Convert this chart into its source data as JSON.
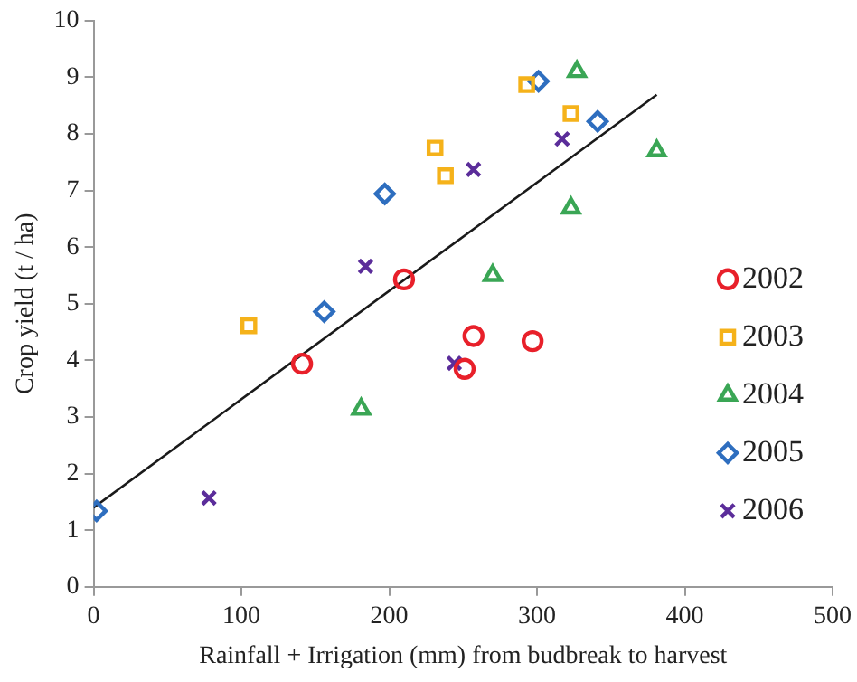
{
  "chart_data": {
    "type": "scatter",
    "xlabel": "Rainfall + Irrigation (mm) from budbreak to harvest",
    "ylabel": "Crop yield (t / ha)",
    "xlim": [
      0,
      500
    ],
    "xticks": [
      0,
      100,
      200,
      300,
      400,
      500
    ],
    "ylim": [
      0,
      10
    ],
    "yticks": [
      0,
      1,
      2,
      3,
      4,
      5,
      6,
      7,
      8,
      9,
      10
    ],
    "grid": false,
    "legend": "bottom right",
    "series": [
      {
        "name": "2002",
        "color": "#e8202a",
        "marker": "circle",
        "x": [
          141,
          210,
          257,
          251,
          297
        ],
        "values": [
          3.94,
          5.43,
          4.43,
          3.85,
          4.34
        ]
      },
      {
        "name": "2003",
        "color": "#f5b21a",
        "marker": "square",
        "x": [
          105,
          231,
          238,
          293,
          323
        ],
        "values": [
          4.61,
          7.75,
          7.26,
          8.87,
          8.36
        ]
      },
      {
        "name": "2004",
        "color": "#3aa655",
        "marker": "triangle",
        "x": [
          181,
          270,
          323,
          327,
          381
        ],
        "values": [
          3.14,
          5.5,
          6.69,
          9.1,
          7.7
        ]
      },
      {
        "name": "2005",
        "color": "#2e6ebf",
        "marker": "diamond",
        "x": [
          2,
          156,
          197,
          301,
          341
        ],
        "values": [
          1.34,
          4.86,
          6.94,
          8.93,
          8.22
        ]
      },
      {
        "name": "2006",
        "color": "#5b2d9a",
        "marker": "cross",
        "x": [
          78,
          184,
          244,
          257,
          317
        ],
        "values": [
          1.57,
          5.66,
          3.95,
          7.37,
          7.91
        ]
      },
      {
        "type": "line",
        "color": "#1a1a1a",
        "marker": "none",
        "line_style": "solid",
        "x": [
          0,
          381
        ],
        "values": [
          1.4,
          8.69
        ]
      }
    ]
  }
}
